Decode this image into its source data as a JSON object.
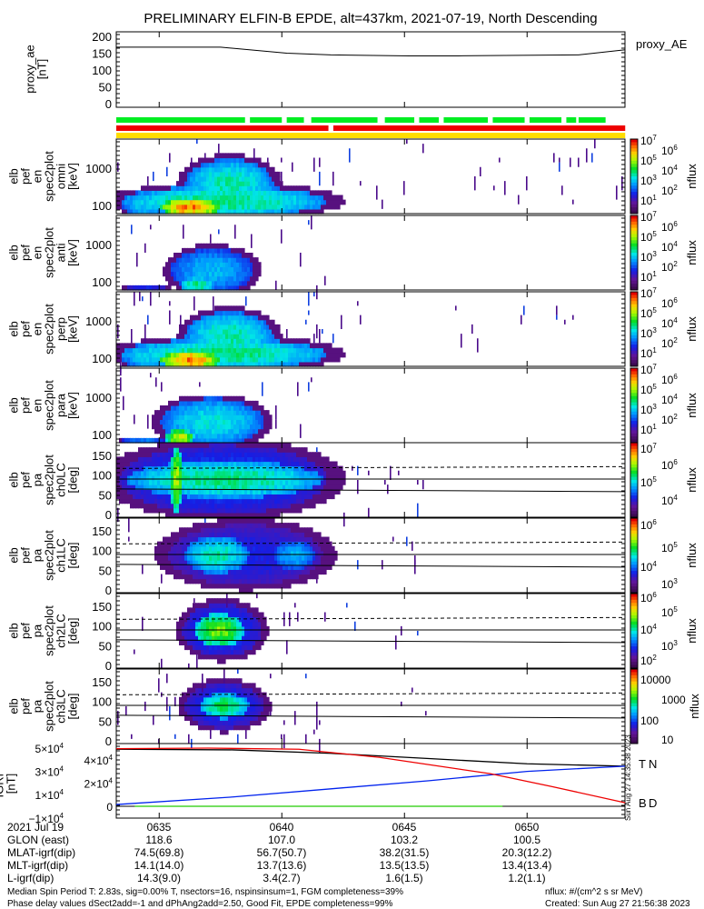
{
  "title": "PRELIMINARY ELFIN-B EPDE, alt=437km, 2021-07-19, North Descending",
  "proxy_ae": {
    "ylabel": [
      "proxy_ae",
      "[nT]"
    ],
    "legend": "proxy_AE",
    "yticks": [
      "0",
      "50",
      "100",
      "150",
      "200"
    ]
  },
  "energy_panels": [
    {
      "ylabel": [
        "elb",
        "pef",
        "en",
        "spec2plot",
        "omni",
        "[keV]"
      ],
      "yticks": [
        "100",
        "1000"
      ],
      "cbar_label": "nflux",
      "cbar_ticks": [
        [
          "10",
          "7"
        ],
        [
          "10",
          "6"
        ],
        [
          "10",
          "5"
        ],
        [
          "10",
          "4"
        ],
        [
          "10",
          "3"
        ],
        [
          "10",
          "2"
        ],
        [
          "10",
          "1"
        ]
      ]
    },
    {
      "ylabel": [
        "elb",
        "pef",
        "en",
        "spec2plot",
        "anti",
        "[keV]"
      ],
      "yticks": [
        "100",
        "1000"
      ],
      "cbar_label": "nflux",
      "cbar_ticks": [
        [
          "10",
          "7"
        ],
        [
          "10",
          "6"
        ],
        [
          "10",
          "5"
        ],
        [
          "10",
          "4"
        ],
        [
          "10",
          "3"
        ],
        [
          "10",
          "2"
        ],
        [
          "10",
          "1"
        ]
      ]
    },
    {
      "ylabel": [
        "elb",
        "pef",
        "en",
        "spec2plot",
        "perp",
        "[keV]"
      ],
      "yticks": [
        "100",
        "1000"
      ],
      "cbar_label": "nflux",
      "cbar_ticks": [
        [
          "10",
          "7"
        ],
        [
          "10",
          "6"
        ],
        [
          "10",
          "5"
        ],
        [
          "10",
          "4"
        ],
        [
          "10",
          "3"
        ],
        [
          "10",
          "2"
        ],
        [
          "10",
          "1"
        ]
      ]
    },
    {
      "ylabel": [
        "elb",
        "pef",
        "en",
        "spec2plot",
        "para",
        "[keV]"
      ],
      "yticks": [
        "100",
        "1000"
      ],
      "cbar_label": "nflux",
      "cbar_ticks": [
        [
          "10",
          "7"
        ],
        [
          "10",
          "6"
        ],
        [
          "10",
          "5"
        ],
        [
          "10",
          "4"
        ],
        [
          "10",
          "3"
        ],
        [
          "10",
          "2"
        ],
        [
          "10",
          "1"
        ]
      ]
    }
  ],
  "pa_panels": [
    {
      "ylabel": [
        "elb",
        "pef",
        "pa",
        "spec2plot",
        "ch0LC",
        "[deg]"
      ],
      "yticks": [
        "0",
        "50",
        "100",
        "150"
      ],
      "cbar_label": "nflux",
      "cbar_ticks": [
        [
          "10",
          "7"
        ],
        [
          "10",
          "6"
        ],
        [
          "10",
          "5"
        ],
        [
          "10",
          "4"
        ]
      ]
    },
    {
      "ylabel": [
        "elb",
        "pef",
        "pa",
        "spec2plot",
        "ch1LC",
        "[deg]"
      ],
      "yticks": [
        "0",
        "50",
        "100",
        "150"
      ],
      "cbar_label": "nflux",
      "cbar_ticks": [
        [
          "10",
          "6"
        ],
        [
          "10",
          "5"
        ],
        [
          "10",
          "4"
        ],
        [
          "10",
          "3"
        ]
      ]
    },
    {
      "ylabel": [
        "elb",
        "pef",
        "pa",
        "spec2plot",
        "ch2LC",
        "[deg]"
      ],
      "yticks": [
        "0",
        "50",
        "100",
        "150"
      ],
      "cbar_label": "nflux",
      "cbar_ticks": [
        [
          "10",
          "6"
        ],
        [
          "10",
          "5"
        ],
        [
          "10",
          "4"
        ],
        [
          "10",
          "3"
        ],
        [
          "10",
          "2"
        ]
      ]
    },
    {
      "ylabel": [
        "elb",
        "pef",
        "pa",
        "spec2plot",
        "ch3LC",
        "[deg]"
      ],
      "yticks": [
        "0",
        "50",
        "100",
        "150"
      ],
      "cbar_label": "nflux",
      "cbar_ticks": [
        [
          "10000",
          ""
        ],
        [
          "1000",
          ""
        ],
        [
          "100",
          ""
        ],
        [
          "10",
          ""
        ]
      ]
    }
  ],
  "igrf": {
    "ylabel": [
      "IGRF",
      "[nT]"
    ],
    "yticks": [
      [
        "5×10",
        "4"
      ],
      [
        "4×10",
        "4"
      ],
      [
        "3×10",
        "4"
      ],
      [
        "2×10",
        "4"
      ],
      [
        "1×10",
        "4"
      ],
      [
        "0",
        ""
      ],
      [
        "−1×10",
        "4"
      ]
    ],
    "legend": [
      "T",
      "N",
      "B",
      "D"
    ],
    "stamp": "Sun Aug 27 14:35:38 2023"
  },
  "orbit_table": {
    "rows": [
      {
        "label": "2021 Jul 19",
        "values": [
          "0635",
          "0640",
          "0645",
          "0650"
        ]
      },
      {
        "label": "GLON (east)",
        "values": [
          "118.6",
          "107.0",
          "103.2",
          "100.5"
        ]
      },
      {
        "label": "MLAT-igrf(dip)",
        "values": [
          "74.5(69.8)",
          "56.7(50.7)",
          "38.2(31.5)",
          "20.3(12.2)"
        ]
      },
      {
        "label": "MLT-igrf(dip)",
        "values": [
          "14.1(14.0)",
          "13.7(13.6)",
          "13.5(13.5)",
          "13.4(13.4)"
        ]
      },
      {
        "label": "L-igrf(dip)",
        "values": [
          "14.3(9.0)",
          "3.4(2.7)",
          "1.6(1.5)",
          "1.2(1.1)"
        ]
      }
    ]
  },
  "footer": {
    "line1": "Median Spin Period T: 2.83s, sig=0.00% T, nsectors=16, nspinsinsum=1, FGM completeness=39%",
    "line2": "Phase delay values dSect2add=-1 and dPhAng2add=2.50, Good Fit, EPDE completeness=99%",
    "units": "nflux: #/(cm^2 s sr MeV)",
    "created": "Created: Sun Aug 27 21:56:38 2023"
  },
  "colors": {
    "green_bar": "#00ee22",
    "red_bar": "#ee0000",
    "yellow_bar": "#ffdd00",
    "igrf_T": "#000000",
    "igrf_N": "#0022ee",
    "igrf_D": "#ee0000",
    "igrf_B": "#22cc00"
  },
  "chart_data": [
    {
      "type": "line",
      "name": "proxy_AE",
      "x_unit": "minutes after 06:00 UT",
      "xlim": [
        33.25,
        54.0
      ],
      "ylim": [
        0,
        200
      ],
      "x": [
        33.25,
        37.5,
        40.2,
        42.0,
        45.2,
        47.2,
        52.1,
        54.0
      ],
      "y": [
        168,
        168,
        150,
        145,
        142,
        142,
        145,
        160
      ]
    },
    {
      "type": "bar",
      "name": "status-bars",
      "segments": {
        "green": [
          [
            33.25,
            38.5
          ],
          [
            38.7,
            40.0
          ],
          [
            40.2,
            40.9
          ],
          [
            41.2,
            43.9
          ],
          [
            44.2,
            45.4
          ],
          [
            45.6,
            46.4
          ],
          [
            46.6,
            48.4
          ],
          [
            48.6,
            49.9
          ],
          [
            50.1,
            51.4
          ],
          [
            51.6,
            52.0
          ],
          [
            52.1,
            53.2
          ]
        ],
        "red": [
          [
            33.25,
            41.9
          ],
          [
            42.1,
            54.0
          ]
        ],
        "yellow": [
          [
            33.25,
            54.0
          ]
        ]
      }
    },
    {
      "type": "heatmap",
      "name": "energy spectrograms",
      "ylim_keV": [
        55,
        7000
      ],
      "yscale": "log",
      "zscale": "log nflux (normalized 0-1)",
      "panels": [
        {
          "blobs": [
            {
              "t": [
                33.4,
                41.8
              ],
              "y": [
                55,
                320
              ],
              "v": 0.55
            },
            {
              "t": [
                36.0,
                39.6
              ],
              "y": [
                90,
                1700
              ],
              "v": 0.52
            },
            {
              "t": [
                35.0,
                37.4
              ],
              "y": [
                55,
                150
              ],
              "v": 0.9
            },
            {
              "t": [
                33.4,
                35.4
              ],
              "y": [
                55,
                220
              ],
              "v": 0.45
            },
            {
              "t": [
                42.0,
                54.0
              ],
              "y": [
                55,
                64
              ],
              "v": 0.28
            }
          ],
          "noise": [
            0.09,
            0.035
          ]
        },
        {
          "blobs": [
            {
              "t": [
                35.4,
                38.8
              ],
              "y": [
                55,
                750
              ],
              "v": 0.42
            },
            {
              "t": [
                35.8,
                37.2
              ],
              "y": [
                55,
                130
              ],
              "v": 0.55
            },
            {
              "t": [
                33.4,
                35.4
              ],
              "y": [
                55,
                70
              ],
              "v": 0.3
            }
          ],
          "noise": [
            0.05,
            0.008
          ]
        },
        {
          "blobs": [
            {
              "t": [
                33.4,
                41.8
              ],
              "y": [
                55,
                320
              ],
              "v": 0.55
            },
            {
              "t": [
                36.0,
                39.6
              ],
              "y": [
                90,
                1700
              ],
              "v": 0.52
            },
            {
              "t": [
                35.0,
                37.4
              ],
              "y": [
                55,
                150
              ],
              "v": 0.9
            },
            {
              "t": [
                33.4,
                35.4
              ],
              "y": [
                55,
                220
              ],
              "v": 0.45
            },
            {
              "t": [
                42.0,
                54.0
              ],
              "y": [
                55,
                64
              ],
              "v": 0.28
            }
          ],
          "noise": [
            0.09,
            0.035
          ]
        },
        {
          "blobs": [
            {
              "t": [
                35.0,
                39.2
              ],
              "y": [
                55,
                900
              ],
              "v": 0.48
            },
            {
              "t": [
                35.2,
                36.4
              ],
              "y": [
                55,
                130
              ],
              "v": 0.75
            },
            {
              "t": [
                33.4,
                35.2
              ],
              "y": [
                55,
                80
              ],
              "v": 0.35
            }
          ],
          "noise": [
            0.06,
            0.0
          ]
        }
      ]
    },
    {
      "type": "heatmap",
      "name": "pitch-angle spectrograms",
      "ylim_deg": [
        0,
        180
      ],
      "zscale": "log nflux (normalized 0-1)",
      "panels": [
        {
          "blobs": [
            {
              "t": [
                33.3,
                41.8
              ],
              "y": [
                5,
                175
              ],
              "v": 0.3
            },
            {
              "t": [
                33.6,
                41.6
              ],
              "y": [
                45,
                135
              ],
              "v": 0.55
            },
            {
              "t": [
                35.4,
                35.9
              ],
              "y": [
                10,
                170
              ],
              "v": 0.72
            }
          ],
          "noise": [
            0.03,
            0.02
          ],
          "lines": {
            "solid": [
              90,
              65
            ],
            "dashed": [
              117
            ]
          }
        },
        {
          "blobs": [
            {
              "t": [
                35.3,
                41.6
              ],
              "y": [
                15,
                165
              ],
              "v": 0.25
            },
            {
              "t": [
                36.0,
                38.6
              ],
              "y": [
                45,
                135
              ],
              "v": 0.52
            },
            {
              "t": [
                39.6,
                41.3
              ],
              "y": [
                55,
                125
              ],
              "v": 0.42
            }
          ],
          "noise": [
            0.04,
            0.012
          ],
          "lines": {
            "solid": [
              90,
              65
            ],
            "dashed": [
              117
            ]
          }
        },
        {
          "blobs": [
            {
              "t": [
                35.9,
                39.1
              ],
              "y": [
                25,
                155
              ],
              "v": 0.3
            },
            {
              "t": [
                36.4,
                38.4
              ],
              "y": [
                50,
                130
              ],
              "v": 0.68
            }
          ],
          "noise": [
            0.05,
            0.01
          ],
          "lines": {
            "solid": [
              90,
              65
            ],
            "dashed": [
              117
            ]
          }
        },
        {
          "blobs": [
            {
              "t": [
                36.0,
                39.2
              ],
              "y": [
                35,
                145
              ],
              "v": 0.28
            },
            {
              "t": [
                36.6,
                38.6
              ],
              "y": [
                60,
                120
              ],
              "v": 0.58
            }
          ],
          "noise": [
            0.12,
            0.01
          ],
          "lines": {
            "solid": [
              90,
              65
            ],
            "dashed": [
              117
            ]
          }
        }
      ]
    },
    {
      "type": "line",
      "name": "IGRF",
      "ylim": [
        -10000,
        50000
      ],
      "series": [
        {
          "name": "T",
          "x": [
            33.25,
            38.0,
            42.0,
            46.0,
            50.0,
            54.0
          ],
          "y": [
            49000,
            48500,
            45500,
            41000,
            36500,
            34500
          ]
        },
        {
          "name": "N",
          "x": [
            33.25,
            38.0,
            42.0,
            46.0,
            50.0,
            54.0
          ],
          "y": [
            1500,
            8000,
            15000,
            22000,
            30000,
            34500
          ]
        },
        {
          "name": "D",
          "x": [
            33.25,
            37.0,
            40.7,
            44.0,
            48.5,
            51.0,
            54.0
          ],
          "y": [
            49500,
            50000,
            49000,
            42000,
            28000,
            17000,
            3000
          ]
        },
        {
          "name": "B",
          "x": [
            34.0,
            49.0
          ],
          "y": [
            0,
            0
          ]
        }
      ]
    }
  ]
}
